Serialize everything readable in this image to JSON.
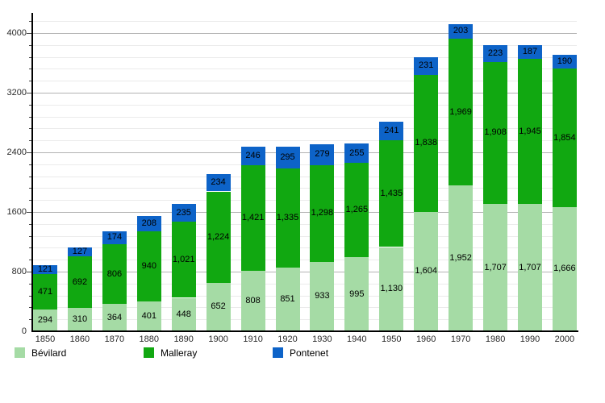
{
  "chart_data": {
    "type": "bar",
    "stacked": true,
    "title": "",
    "xlabel": "",
    "ylabel": "",
    "categories": [
      "1850",
      "1860",
      "1870",
      "1880",
      "1890",
      "1900",
      "1910",
      "1920",
      "1930",
      "1940",
      "1950",
      "1960",
      "1970",
      "1980",
      "1990",
      "2000"
    ],
    "series": [
      {
        "name": "Bévilard",
        "color": "#a5dba5",
        "values": [
          294,
          310,
          364,
          401,
          448,
          652,
          808,
          851,
          933,
          995,
          1130,
          1604,
          1952,
          1707,
          1707,
          1666
        ]
      },
      {
        "name": "Malleray",
        "color": "#11a811",
        "values": [
          471,
          692,
          806,
          940,
          1021,
          1224,
          1421,
          1335,
          1298,
          1265,
          1435,
          1838,
          1969,
          1908,
          1945,
          1854
        ]
      },
      {
        "name": "Pontenet",
        "color": "#0d63c8",
        "values": [
          121,
          127,
          174,
          208,
          235,
          234,
          246,
          295,
          279,
          255,
          241,
          231,
          203,
          223,
          187,
          190
        ]
      }
    ],
    "y_axis": {
      "tick_labels": [
        "0",
        "800",
        "1600",
        "2400",
        "3200",
        "4000"
      ],
      "major_step": 800,
      "minor_step": 160,
      "range": [
        0,
        4249
      ]
    },
    "grid": true,
    "legend_position": "bottom",
    "bar_value_labels": true
  }
}
